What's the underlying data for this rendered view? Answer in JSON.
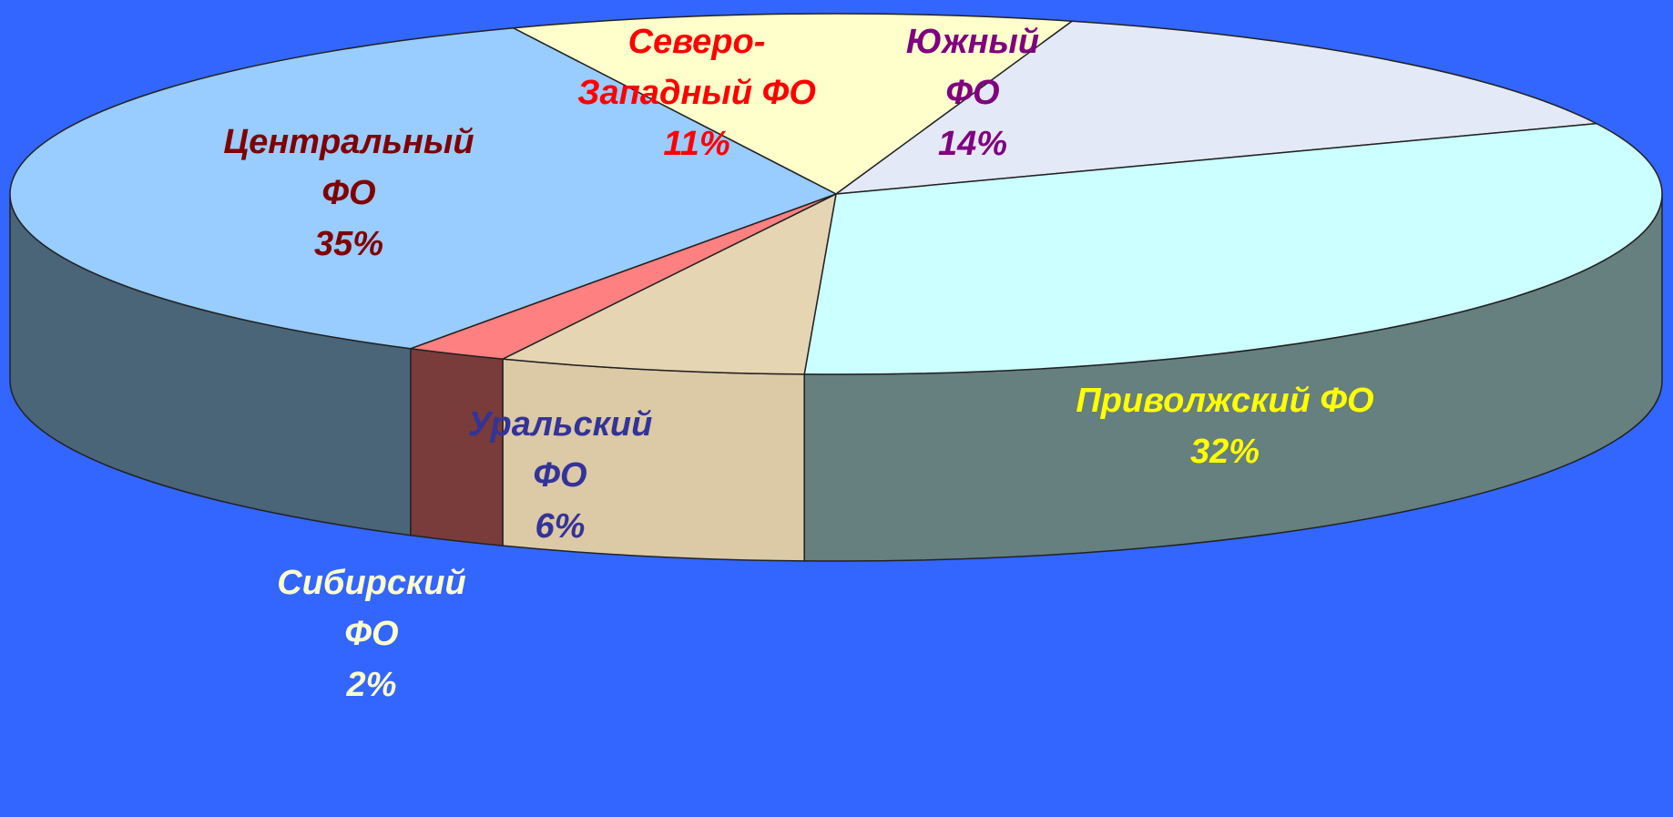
{
  "chart_data": {
    "type": "pie3d",
    "categories": [
      "Северо-Западный ФО",
      "Южный ФО",
      "Приволжский ФО",
      "Уральский ФО",
      "Сибирский ФО",
      "Центральный ФО"
    ],
    "values": [
      11,
      14,
      32,
      6,
      2,
      35
    ],
    "value_labels": [
      "11%",
      "14%",
      "32%",
      "6%",
      "2%",
      "35%"
    ],
    "colors": [
      "#ffffcc",
      "#e3e9f7",
      "#ccffff",
      "#e6d5b3",
      "#ff8080",
      "#99ccff"
    ],
    "side_colors": [
      "#b3b38f",
      "#9ea3ad",
      "#667f7f",
      "#dcc9a6",
      "#7a3b3b",
      "#4a6478"
    ],
    "label_colors": [
      "#ff0000",
      "#800080",
      "#ffff00",
      "#333399",
      "#ffffcc",
      "#800000"
    ]
  }
}
